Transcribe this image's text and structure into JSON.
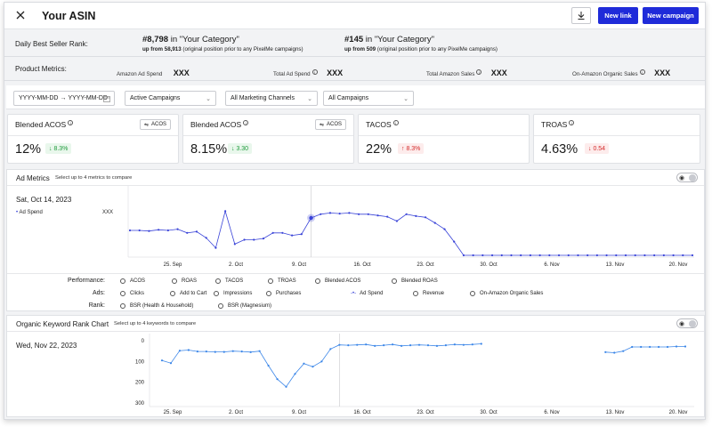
{
  "header": {
    "title": "Your ASIN",
    "new_link_label": "New link",
    "new_campaign_label": "New campaign"
  },
  "bsr": {
    "label": "Daily Best Seller Rank:",
    "items": [
      {
        "rank": "#8,798",
        "category": "in \"Your Category\"",
        "sub_bold": "up from 58,913",
        "sub_rest": "(original position prior to any PixelMe campaigns)"
      },
      {
        "rank": "#145",
        "category": "in \"Your Category\"",
        "sub_bold": "up from 509",
        "sub_rest": "(original position prior to any PixelMe campaigns)"
      }
    ]
  },
  "product_metrics": {
    "label": "Product Metrics:",
    "items": [
      {
        "label": "Amazon Ad Spend",
        "value": "XXX"
      },
      {
        "label": "Total Ad Spend",
        "value": "XXX"
      },
      {
        "label": "Total Amazon Sales",
        "value": "XXX"
      },
      {
        "label": "On-Amazon Organic Sales",
        "value": "XXX"
      }
    ]
  },
  "filters": {
    "date_start": "YYYY-MM-DD",
    "date_sep": "→",
    "date_end": "YYYY-MM-DD",
    "campaign_status": "Active Campaigns",
    "channels": "All Marketing Channels",
    "campaigns": "All Campaigns"
  },
  "kpis": [
    {
      "title": "Blended ACOS",
      "toggle": "ACOS",
      "value": "12%",
      "delta": "↓ 8.3%",
      "trend": "good"
    },
    {
      "title": "Blended ACOS",
      "toggle": "ACOS",
      "value": "8.15%",
      "delta": "↓ 3.30",
      "trend": "good"
    },
    {
      "title": "TACOS",
      "toggle": "",
      "value": "22%",
      "delta": "↑ 8.3%",
      "trend": "bad"
    },
    {
      "title": "TROAS",
      "toggle": "",
      "value": "4.63%",
      "delta": "↓ 0.54",
      "trend": "bad"
    }
  ],
  "ad_metrics": {
    "title": "Ad Metrics",
    "subtitle": "Select up to 4 metrics to compare",
    "hover_date": "Sat, Oct 14, 2023",
    "legend_series": "Ad Spend",
    "legend_value": "XXX",
    "rows": [
      {
        "label": "Performance:",
        "options": [
          "ACOS",
          "ROAS",
          "TACOS",
          "TROAS",
          "Blended ACOS",
          "Blended ROAS"
        ]
      },
      {
        "label": "Ads:",
        "options": [
          "Clicks",
          "Add to Cart",
          "Impressions",
          "Purchases",
          "Ad Spend",
          "Revenue",
          "On-Amazon Organic Sales"
        ]
      },
      {
        "label": "Rank:",
        "options": [
          "BSR (Health & Household)",
          "BSR (Magnesium)"
        ]
      }
    ],
    "selected_option": "Ad Spend"
  },
  "keyword_chart": {
    "title": "Organic Keyword Rank Chart",
    "subtitle": "Select up to 4 keywords to compare",
    "hover_date": "Wed, Nov 22, 2023"
  },
  "chart_data": [
    {
      "type": "line",
      "name": "ad-metrics",
      "x_tick_labels": [
        "25. Sep",
        "2. Oct",
        "9. Oct",
        "16. Oct",
        "23. Oct",
        "30. Oct",
        "6. Nov",
        "13. Nov",
        "20. Nov"
      ],
      "series": [
        {
          "name": "Ad Spend",
          "color": "#3a44d8",
          "values": [
            0.4,
            0.4,
            0.39,
            0.41,
            0.4,
            0.42,
            0.36,
            0.38,
            0.28,
            0.12,
            0.71,
            0.18,
            0.25,
            0.25,
            0.27,
            0.36,
            0.36,
            0.32,
            0.34,
            0.6,
            0.66,
            0.68,
            0.67,
            0.68,
            0.66,
            0.66,
            0.64,
            0.62,
            0.55,
            0.66,
            0.63,
            0.61,
            0.52,
            0.42,
            0.22,
            0.0,
            0.0,
            0.0,
            0.0,
            0.0,
            0.0,
            0.0,
            0.0,
            0.0,
            0.0,
            0.0,
            0.0,
            0.0,
            0.0,
            0.0,
            0.0,
            0.0,
            0.0,
            0.0,
            0.0,
            0.0,
            0.0,
            0.0,
            0.0,
            0.0
          ]
        }
      ],
      "hover_index": 19,
      "grid": false,
      "legend": "left"
    },
    {
      "type": "line",
      "name": "keyword-rank",
      "y_ticks": [
        0,
        100,
        200,
        300
      ],
      "y_inverted": true,
      "ylim": [
        0,
        300
      ],
      "x_tick_labels": [
        "25. Sep",
        "2. Oct",
        "9. Oct",
        "16. Oct",
        "23. Oct",
        "30. Oct",
        "6. Nov",
        "13. Nov",
        "20. Nov"
      ],
      "series": [
        {
          "name": "Keyword rank",
          "color": "#3b86e8",
          "values": [
            95,
            108,
            48,
            45,
            52,
            52,
            54,
            54,
            50,
            52,
            55,
            50,
            120,
            185,
            222,
            160,
            110,
            125,
            100,
            40,
            20,
            22,
            20,
            18,
            25,
            22,
            18,
            25,
            22,
            20,
            22,
            25,
            22,
            18,
            20,
            18,
            15,
            null,
            null,
            null,
            null,
            null,
            null,
            null,
            null,
            null,
            null,
            null,
            null,
            null,
            55,
            58,
            50,
            30,
            30,
            30,
            30,
            30,
            28,
            28
          ]
        }
      ],
      "hover_index": 20,
      "grid": false
    }
  ]
}
